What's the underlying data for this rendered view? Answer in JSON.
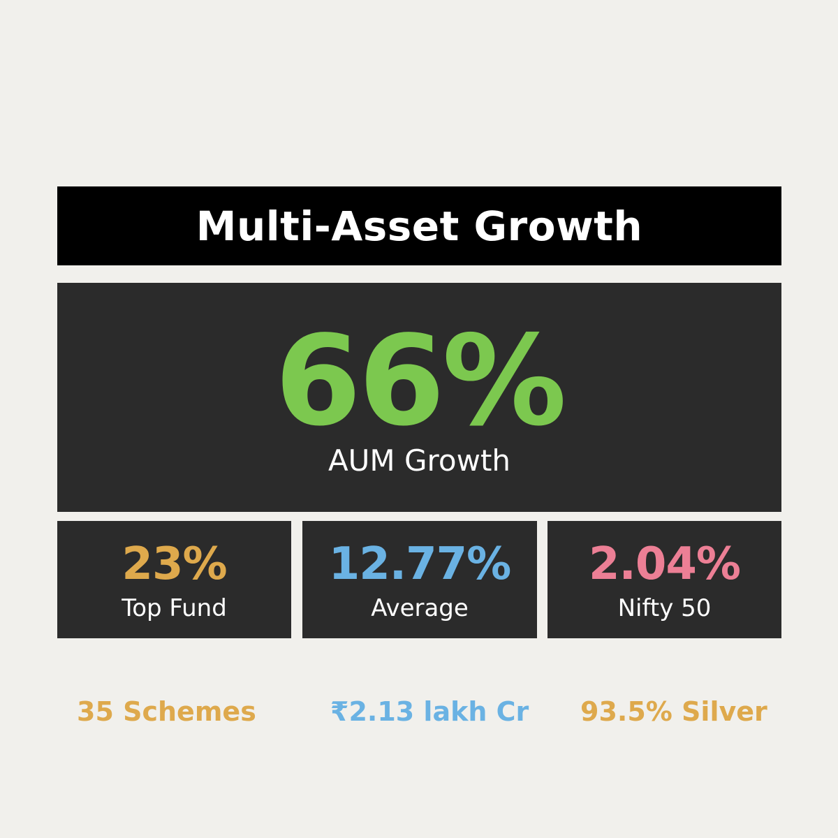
{
  "header": {
    "title": "Multi-Asset Growth"
  },
  "hero": {
    "value": "66%",
    "label": "AUM Growth",
    "color": "#7cc84f"
  },
  "stats": [
    {
      "value": "23%",
      "label": "Top Fund",
      "color": "#dea94c"
    },
    {
      "value": "12.77%",
      "label": "Average",
      "color": "#6ab2e3"
    },
    {
      "value": "2.04%",
      "label": "Nifty 50",
      "color": "#ec7f95"
    }
  ],
  "footer": [
    {
      "text": "35 Schemes",
      "color": "#dea94c"
    },
    {
      "text": "₹2.13 lakh Cr",
      "color": "#6ab2e3"
    },
    {
      "text": "93.5% Silver",
      "color": "#dea94c"
    }
  ]
}
